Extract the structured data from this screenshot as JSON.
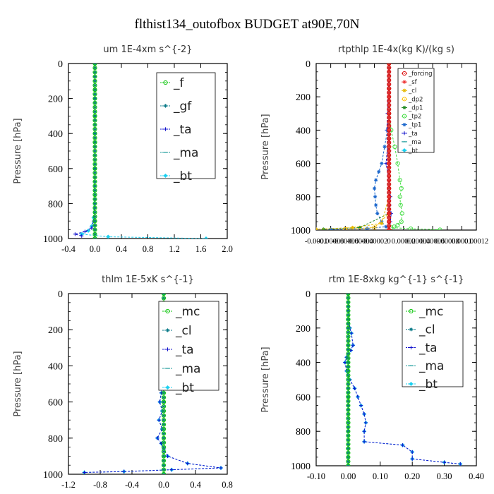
{
  "figure_title": "flthist134_outofbox  BUDGET at90E,70N",
  "chart_data": [
    {
      "type": "line",
      "title": "um  1E-4xm s^{-2}",
      "xlabel": "",
      "ylabel": "Pressure [hPa]",
      "xlim": [
        -0.4,
        2.0
      ],
      "ylim": [
        1000,
        0
      ],
      "xticks": [
        "-0.4",
        "0.0",
        "0.4",
        "0.8",
        "1.2",
        "1.6",
        "2.0"
      ],
      "yticks": [
        "0",
        "200",
        "400",
        "600",
        "800",
        "1000"
      ],
      "legend_position": "top-right",
      "legend_font": "large",
      "series": [
        {
          "name": "_f",
          "color": "#11c711",
          "marker": "circle",
          "x": [
            0,
            0,
            0,
            0,
            0,
            0,
            0,
            0
          ],
          "y": [
            0,
            150,
            300,
            450,
            600,
            750,
            900,
            1000
          ]
        },
        {
          "name": "_gf",
          "color": "#0a7a88",
          "marker": "star",
          "x": [
            0,
            0,
            0,
            0,
            0,
            0,
            0,
            0
          ],
          "y": [
            0,
            150,
            300,
            450,
            600,
            750,
            900,
            1000
          ]
        },
        {
          "name": "_ta",
          "color": "#1010cc",
          "marker": "plus",
          "x": [
            0,
            0,
            0,
            0,
            0,
            -0.02,
            -0.05,
            -0.15,
            -0.3,
            -0.2
          ],
          "y": [
            0,
            200,
            400,
            600,
            800,
            900,
            940,
            960,
            975,
            985
          ]
        },
        {
          "name": "_ma",
          "color": "#1a9a9a",
          "marker": "dash",
          "x": [
            0,
            0,
            0,
            0,
            0,
            0,
            0
          ],
          "y": [
            0,
            200,
            400,
            600,
            800,
            950,
            1000
          ]
        },
        {
          "name": "_bt",
          "color": "#1ad0f0",
          "marker": "diamond",
          "x": [
            0,
            0,
            0,
            0,
            -0.02,
            -0.05,
            -0.1,
            -0.2,
            0.2,
            1.68
          ],
          "y": [
            0,
            200,
            400,
            600,
            880,
            930,
            955,
            975,
            990,
            1000
          ]
        }
      ]
    },
    {
      "type": "line",
      "title": "rtpthlp  1E-4x(kg K)/(kg s)",
      "xlabel": "",
      "ylabel": "Pressure [hPa]",
      "xlim": [
        -0.0001,
        0.00012
      ],
      "ylim": [
        1000,
        0
      ],
      "xticks": [
        "-0.0001",
        "-0.00008",
        "-0.00006",
        "-0.00004",
        "-0.00002",
        "0",
        "0.00002",
        "0.00004",
        "0.00006",
        "0.00008",
        "0.0001",
        "0.00012"
      ],
      "yticks": [
        "0",
        "200",
        "400",
        "600",
        "800",
        "1000"
      ],
      "legend_position": "top-right",
      "legend_font": "small",
      "series": [
        {
          "name": "_forcing",
          "color": "#dd1111",
          "marker": "circle",
          "x": [
            0,
            0,
            0,
            0,
            0,
            0,
            0,
            0
          ],
          "y": [
            0,
            150,
            300,
            450,
            600,
            750,
            900,
            1000
          ]
        },
        {
          "name": "_sf",
          "color": "#ee3333",
          "marker": "star",
          "x": [
            0,
            0,
            0,
            0,
            0,
            0,
            0
          ],
          "y": [
            0,
            200,
            400,
            600,
            800,
            950,
            1000
          ]
        },
        {
          "name": "_cl",
          "color": "#e6b800",
          "marker": "star",
          "x": [
            0,
            0,
            0,
            -1e-05,
            -5e-05,
            -0.0001
          ],
          "y": [
            0,
            400,
            800,
            960,
            985,
            995
          ]
        },
        {
          "name": "_dp2",
          "color": "#ffc000",
          "marker": "circle",
          "x": [
            0,
            0,
            0,
            -2e-05,
            -6e-05
          ],
          "y": [
            0,
            500,
            900,
            985,
            995
          ]
        },
        {
          "name": "_dp1",
          "color": "#228b22",
          "marker": "star",
          "x": [
            0,
            0,
            0,
            -4e-05,
            -9e-05
          ],
          "y": [
            0,
            500,
            900,
            985,
            995
          ]
        },
        {
          "name": "_tp2",
          "color": "#44dd44",
          "marker": "circle",
          "x": [
            0,
            0,
            3e-06,
            8e-06,
            1.2e-05,
            1.5e-05,
            1.7e-05,
            1.5e-05,
            1.6e-05,
            1.8e-05,
            1.7e-05,
            1.2e-05,
            7e-06,
            3e-06,
            3e-05,
            7e-05
          ],
          "y": [
            0,
            300,
            400,
            500,
            600,
            700,
            750,
            800,
            850,
            900,
            950,
            970,
            980,
            985,
            992,
            998
          ]
        },
        {
          "name": "_tp1",
          "color": "#1a66cc",
          "marker": "star",
          "x": [
            0,
            -2e-06,
            -6e-06,
            -1e-05,
            -1.4e-05,
            -1.8e-05,
            -2e-05,
            -1.9e-05,
            -1.8e-05,
            -1.6e-05,
            -1e-05,
            -4e-06,
            -3e-05,
            -8e-05
          ],
          "y": [
            0,
            400,
            500,
            600,
            650,
            700,
            750,
            800,
            850,
            900,
            950,
            980,
            990,
            996
          ]
        },
        {
          "name": "_ta",
          "color": "#1010cc",
          "marker": "plus",
          "x": [
            0,
            -2e-06,
            -3e-06,
            -2e-06,
            -4e-06,
            0,
            2e-06,
            1e-06,
            3e-06,
            2e-06,
            0
          ],
          "y": [
            0,
            300,
            400,
            500,
            600,
            700,
            800,
            850,
            900,
            950,
            1000
          ]
        },
        {
          "name": "_ma",
          "color": "#1a9a9a",
          "marker": "dash",
          "x": [
            0,
            0,
            0,
            0,
            0,
            0
          ],
          "y": [
            0,
            200,
            400,
            600,
            800,
            1000
          ]
        },
        {
          "name": "_bt",
          "color": "#1ad0f0",
          "marker": "diamond",
          "x": [
            0,
            0,
            0,
            0,
            0,
            0
          ],
          "y": [
            0,
            200,
            400,
            600,
            800,
            1000
          ]
        }
      ]
    },
    {
      "type": "line",
      "title": "thlm  1E-5xK s^{-1}",
      "xlabel": "",
      "ylabel": "Pressure [hPa]",
      "xlim": [
        -1.2,
        0.8
      ],
      "ylim": [
        1000,
        0
      ],
      "xticks": [
        "-1.2",
        "-0.8",
        "-0.4",
        "0.0",
        "0.4",
        "0.8"
      ],
      "yticks": [
        "0",
        "200",
        "400",
        "600",
        "800",
        "1000"
      ],
      "legend_position": "top-right",
      "legend_font": "large",
      "series": [
        {
          "name": "_mc",
          "color": "#11c711",
          "marker": "circle",
          "x": [
            0,
            0,
            0,
            0,
            0,
            0,
            0,
            0
          ],
          "y": [
            0,
            150,
            300,
            450,
            600,
            750,
            900,
            1000
          ]
        },
        {
          "name": "_cl",
          "color": "#0a7a88",
          "marker": "star",
          "x": [
            0,
            0,
            0,
            0,
            0,
            0,
            0
          ],
          "y": [
            0,
            200,
            400,
            600,
            800,
            950,
            1000
          ]
        },
        {
          "name": "_ta",
          "color": "#1010cc",
          "marker": "plus",
          "x": [
            0,
            0,
            -0.01,
            -0.02,
            -0.01,
            -0.03,
            -0.05,
            -0.02,
            -0.06,
            -0.02,
            -0.08,
            -0.03,
            0,
            0.05,
            0.3,
            0.72,
            0.1,
            -0.5,
            -1.0
          ],
          "y": [
            0,
            200,
            300,
            400,
            500,
            550,
            600,
            650,
            700,
            750,
            800,
            830,
            860,
            900,
            940,
            965,
            975,
            985,
            990
          ]
        },
        {
          "name": "_ma",
          "color": "#1a9a9a",
          "marker": "dash",
          "x": [
            0,
            0,
            0,
            0,
            0,
            0
          ],
          "y": [
            0,
            200,
            400,
            600,
            800,
            1000
          ]
        },
        {
          "name": "_bt",
          "color": "#1ad0f0",
          "marker": "diamond",
          "x": [
            0,
            0,
            -0.01,
            -0.02,
            -0.01,
            -0.03,
            -0.05,
            -0.02,
            -0.06,
            -0.02,
            -0.08,
            -0.03,
            0,
            0.05,
            0.3,
            0.72,
            0.1,
            -0.5,
            -1.0
          ],
          "y": [
            0,
            200,
            300,
            400,
            500,
            550,
            600,
            650,
            700,
            750,
            800,
            830,
            860,
            900,
            940,
            965,
            975,
            985,
            990
          ]
        }
      ]
    },
    {
      "type": "line",
      "title": "rtm  1E-8xkg kg^{-1} s^{-1}",
      "xlabel": "",
      "ylabel": "Pressure [hPa]",
      "xlim": [
        -0.1,
        0.4
      ],
      "ylim": [
        1000,
        0
      ],
      "xticks": [
        "-0.10",
        "0.00",
        "0.10",
        "0.20",
        "0.30",
        "0.40"
      ],
      "yticks": [
        "0",
        "200",
        "400",
        "600",
        "800",
        "1000"
      ],
      "legend_position": "top-right",
      "legend_font": "large",
      "series": [
        {
          "name": "_mc",
          "color": "#11c711",
          "marker": "circle",
          "x": [
            0,
            0,
            0,
            0,
            0,
            0,
            0,
            0
          ],
          "y": [
            0,
            150,
            300,
            450,
            600,
            750,
            900,
            1000
          ]
        },
        {
          "name": "_cl",
          "color": "#0a7a88",
          "marker": "star",
          "x": [
            0,
            0,
            0,
            0,
            0,
            0,
            0
          ],
          "y": [
            0,
            200,
            400,
            600,
            800,
            950,
            1000
          ]
        },
        {
          "name": "_ta",
          "color": "#1010cc",
          "marker": "plus",
          "x": [
            0,
            0.005,
            0.01,
            0.015,
            0.008,
            -0.005,
            -0.01,
            -0.005,
            0.005,
            0.02,
            0.03,
            0.04,
            0.05,
            0.055,
            0.05,
            0.05,
            0.17,
            0.2,
            0.2,
            0.3,
            0.35
          ],
          "y": [
            0,
            200,
            230,
            300,
            330,
            370,
            400,
            450,
            500,
            550,
            600,
            650,
            700,
            750,
            800,
            860,
            880,
            920,
            960,
            980,
            990
          ]
        },
        {
          "name": "_ma",
          "color": "#1a9a9a",
          "marker": "dash",
          "x": [
            0,
            0,
            0,
            0,
            0,
            0
          ],
          "y": [
            0,
            200,
            400,
            600,
            800,
            1000
          ]
        },
        {
          "name": "_bt",
          "color": "#1ad0f0",
          "marker": "diamond",
          "x": [
            0,
            0.005,
            0.01,
            0.015,
            0.008,
            -0.005,
            -0.01,
            -0.005,
            0.005,
            0.02,
            0.03,
            0.04,
            0.05,
            0.055,
            0.05,
            0.05,
            0.17,
            0.2,
            0.2,
            0.3,
            0.35
          ],
          "y": [
            0,
            200,
            230,
            300,
            330,
            370,
            400,
            450,
            500,
            550,
            600,
            650,
            700,
            750,
            800,
            860,
            880,
            920,
            960,
            980,
            990
          ]
        }
      ]
    }
  ]
}
